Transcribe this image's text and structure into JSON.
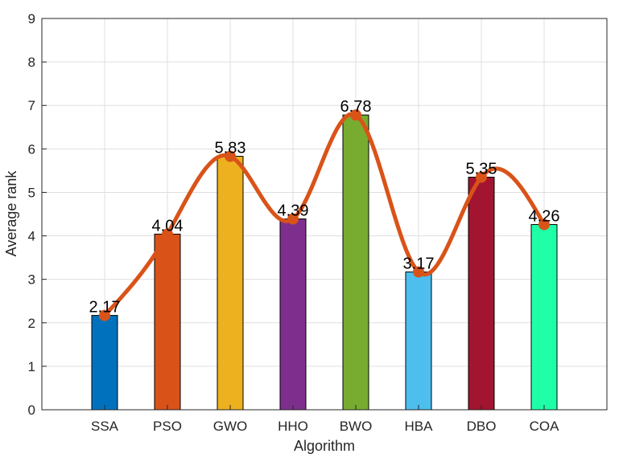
{
  "chart_data": {
    "type": "bar",
    "title": "",
    "xlabel": "Algorithm",
    "ylabel": "Average rank",
    "categories": [
      "SSA",
      "PSO",
      "GWO",
      "HHO",
      "BWO",
      "HBA",
      "DBO",
      "COA"
    ],
    "values": [
      2.17,
      4.04,
      5.83,
      4.39,
      6.78,
      3.17,
      5.35,
      4.26
    ],
    "value_labels": [
      "2.17",
      "4.04",
      "5.83",
      "4.39",
      "6.78",
      "3.17",
      "5.35",
      "4.26"
    ],
    "bar_colors": [
      "#0072BD",
      "#D95319",
      "#EDB120",
      "#7E2F8E",
      "#77AC30",
      "#4DBEEE",
      "#A2142F",
      "#1FFFA8"
    ],
    "ylim": [
      0,
      9
    ],
    "yticks": [
      "0",
      "1",
      "2",
      "3",
      "4",
      "5",
      "6",
      "7",
      "8",
      "9"
    ],
    "grid": true,
    "overlay_line": {
      "type": "smooth-spline",
      "color": "#D95319",
      "values": [
        2.17,
        4.04,
        5.83,
        4.39,
        6.78,
        3.17,
        5.35,
        4.26
      ]
    }
  }
}
